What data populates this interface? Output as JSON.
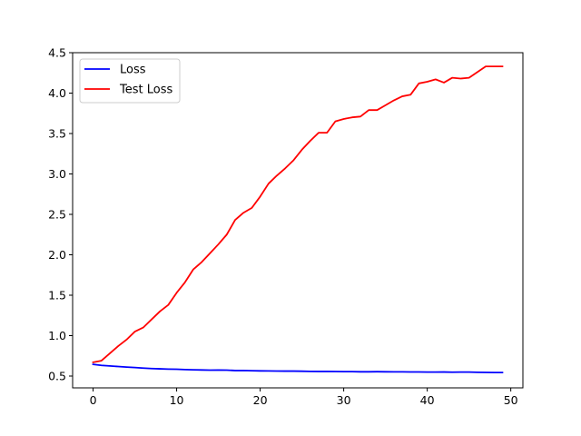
{
  "chart_data": {
    "type": "line",
    "title": "",
    "xlabel": "",
    "ylabel": "",
    "xlim": [
      -2.45,
      51.45
    ],
    "ylim": [
      0.354,
      4.5
    ],
    "xticks": [
      0,
      10,
      20,
      30,
      40,
      50
    ],
    "yticks": [
      0.5,
      1.0,
      1.5,
      2.0,
      2.5,
      3.0,
      3.5,
      4.0,
      4.5
    ],
    "xtick_labels": [
      "0",
      "10",
      "20",
      "30",
      "40",
      "50"
    ],
    "ytick_labels": [
      "0.5",
      "1.0",
      "1.5",
      "2.0",
      "2.5",
      "3.0",
      "3.5",
      "4.0",
      "4.5"
    ],
    "grid": false,
    "legend_position": "upper-left",
    "x": [
      0,
      1,
      2,
      3,
      4,
      5,
      6,
      7,
      8,
      9,
      10,
      11,
      12,
      13,
      14,
      15,
      16,
      17,
      18,
      19,
      20,
      21,
      22,
      23,
      24,
      25,
      26,
      27,
      28,
      29,
      30,
      31,
      32,
      33,
      34,
      35,
      36,
      37,
      38,
      39,
      40,
      41,
      42,
      43,
      44,
      45,
      46,
      47,
      48,
      49
    ],
    "series": [
      {
        "name": "Loss",
        "color": "#0000ff",
        "values": [
          0.645,
          0.632,
          0.625,
          0.618,
          0.611,
          0.605,
          0.598,
          0.593,
          0.589,
          0.586,
          0.584,
          0.58,
          0.577,
          0.575,
          0.573,
          0.574,
          0.573,
          0.568,
          0.569,
          0.566,
          0.564,
          0.563,
          0.562,
          0.561,
          0.561,
          0.56,
          0.558,
          0.557,
          0.558,
          0.556,
          0.555,
          0.555,
          0.553,
          0.553,
          0.554,
          0.553,
          0.552,
          0.552,
          0.551,
          0.551,
          0.549,
          0.549,
          0.55,
          0.548,
          0.549,
          0.549,
          0.546,
          0.545,
          0.544,
          0.544
        ]
      },
      {
        "name": "Test Loss",
        "color": "#ff0000",
        "values": [
          0.67,
          0.69,
          0.78,
          0.87,
          0.95,
          1.05,
          1.1,
          1.2,
          1.3,
          1.38,
          1.53,
          1.66,
          1.82,
          1.91,
          2.02,
          2.13,
          2.25,
          2.43,
          2.52,
          2.58,
          2.72,
          2.88,
          2.98,
          3.07,
          3.17,
          3.3,
          3.41,
          3.51,
          3.51,
          3.65,
          3.68,
          3.7,
          3.71,
          3.79,
          3.79,
          3.85,
          3.91,
          3.96,
          3.98,
          4.12,
          4.14,
          4.17,
          4.13,
          4.19,
          4.18,
          4.19,
          4.26,
          4.33,
          4.33,
          4.33
        ]
      }
    ]
  }
}
